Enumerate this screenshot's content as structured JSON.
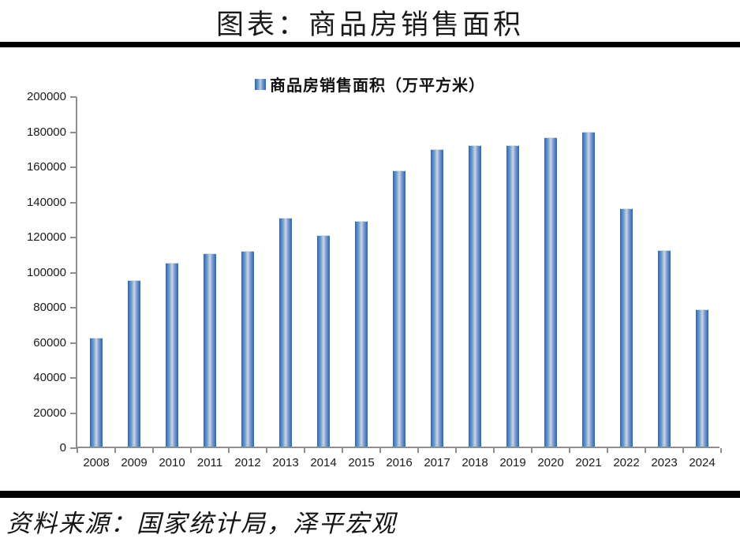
{
  "title": "图表：商品房销售面积",
  "legend": {
    "label": "商品房销售面积（万平方米）"
  },
  "footer": {
    "source": "资料来源：国家统计局，泽平宏观"
  },
  "colors": {
    "bar_edge": "#2765ad",
    "bar_center": "#bccfe5",
    "axis": "#8e8e8e",
    "rule": "#000000",
    "text": "#1a1a1a"
  },
  "chart_data": {
    "type": "bar",
    "title": "图表：商品房销售面积",
    "series_name": "商品房销售面积（万平方米）",
    "categories": [
      "2008",
      "2009",
      "2010",
      "2011",
      "2012",
      "2013",
      "2014",
      "2015",
      "2016",
      "2017",
      "2018",
      "2019",
      "2020",
      "2021",
      "2022",
      "2023",
      "2024"
    ],
    "values": [
      62089,
      94755,
      104765,
      109946,
      111304,
      130551,
      120649,
      128495,
      157349,
      169408,
      171654,
      171558,
      176086,
      179433,
      135837,
      111735,
      78000
    ],
    "xlabel": "",
    "ylabel": "",
    "ylim": [
      0,
      200000
    ],
    "yticks": [
      0,
      20000,
      40000,
      60000,
      80000,
      100000,
      120000,
      140000,
      160000,
      180000,
      200000
    ],
    "grid": false,
    "legend_position": "top-center",
    "source_note": "资料来源：国家统计局，泽平宏观"
  }
}
